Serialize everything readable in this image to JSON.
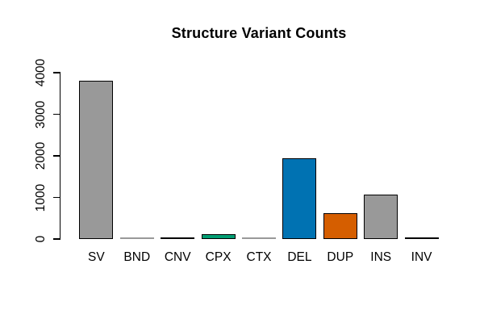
{
  "chart_data": {
    "type": "bar",
    "title": "Structure Variant Counts",
    "xlabel": "",
    "ylabel": "",
    "categories": [
      "SV",
      "BND",
      "CNV",
      "CPX",
      "CTX",
      "DEL",
      "DUP",
      "INS",
      "INV"
    ],
    "values": [
      3800,
      12,
      35,
      110,
      10,
      1950,
      615,
      1060,
      38
    ],
    "colors": [
      "#999999",
      "#999999",
      "#000000",
      "#009E73",
      "#999999",
      "#0072B2",
      "#D55E00",
      "#999999",
      "#000000"
    ],
    "bar_border_color": "#000000",
    "yticks": [
      0,
      1000,
      2000,
      3000,
      4000
    ],
    "ytick_labels": [
      "0",
      "1000",
      "2000",
      "3000",
      "4000"
    ],
    "ylim": [
      0,
      4000
    ],
    "grid": false,
    "legend": false,
    "background": "#FFFFFF",
    "axis_color": "#000000",
    "text_color": "#000000"
  }
}
